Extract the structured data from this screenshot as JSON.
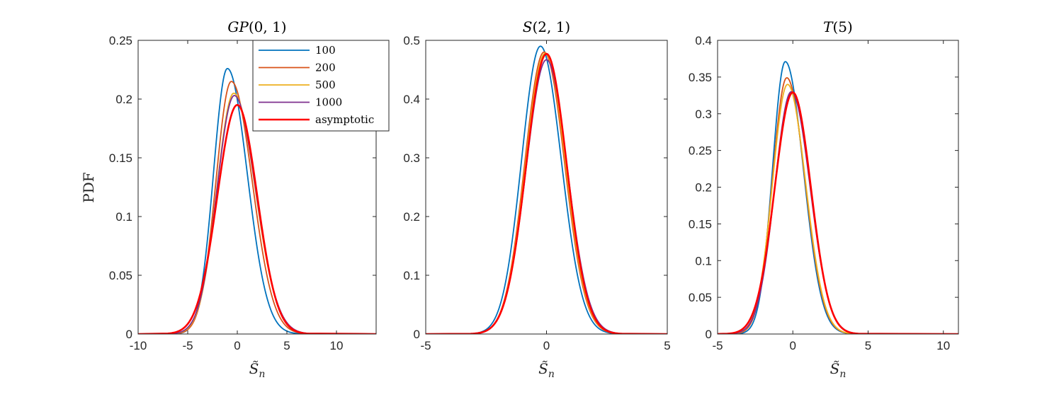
{
  "figure": {
    "ylabel": "PDF"
  },
  "chart_data": [
    {
      "type": "line",
      "title": "GP(0,1)",
      "xlabel": "S̃n",
      "ylabel": "PDF",
      "xlim": [
        -10,
        14
      ],
      "ylim": [
        0,
        0.25
      ],
      "xticks": [
        "-10",
        "-5",
        "0",
        "5",
        "10"
      ],
      "yticks": [
        "0",
        "0.05",
        "0.1",
        "0.15",
        "0.2",
        "0.25"
      ],
      "legend": {
        "location": "top-right",
        "entries": [
          "100",
          "200",
          "500",
          "1000",
          "asymptotic"
        ]
      },
      "series": [
        {
          "name": "100",
          "color": "#0072BD",
          "mean": -1.0,
          "peak": 0.226,
          "sdl": 1.4,
          "sdr": 2.0
        },
        {
          "name": "200",
          "color": "#D95319",
          "mean": -0.6,
          "peak": 0.215,
          "sdl": 1.55,
          "sdr": 2.1
        },
        {
          "name": "500",
          "color": "#EDB120",
          "mean": -0.35,
          "peak": 0.205,
          "sdl": 1.7,
          "sdr": 2.15
        },
        {
          "name": "1000",
          "color": "#7E2F8E",
          "mean": -0.3,
          "peak": 0.203,
          "sdl": 1.75,
          "sdr": 2.15
        },
        {
          "name": "asymptotic",
          "color": "#FF0000",
          "mean": 0.0,
          "peak": 0.195,
          "sdl": 2.0,
          "sdr": 2.0
        }
      ]
    },
    {
      "type": "line",
      "title": "S(2,1)",
      "xlabel": "S̃n",
      "ylabel": "",
      "xlim": [
        -5,
        5
      ],
      "ylim": [
        0,
        0.5
      ],
      "xticks": [
        "-5",
        "0",
        "5"
      ],
      "yticks": [
        "0",
        "0.1",
        "0.2",
        "0.3",
        "0.4",
        "0.5"
      ],
      "series": [
        {
          "name": "100",
          "color": "#0072BD",
          "mean": -0.25,
          "peak": 0.49,
          "sdl": 0.78,
          "sdr": 0.86
        },
        {
          "name": "200",
          "color": "#D95319",
          "mean": -0.1,
          "peak": 0.48,
          "sdl": 0.8,
          "sdr": 0.85
        },
        {
          "name": "500",
          "color": "#EDB120",
          "mean": -0.05,
          "peak": 0.478,
          "sdl": 0.82,
          "sdr": 0.84
        },
        {
          "name": "1000",
          "color": "#7E2F8E",
          "mean": 0.0,
          "peak": 0.467,
          "sdl": 0.84,
          "sdr": 0.86
        },
        {
          "name": "asymptotic",
          "color": "#FF0000",
          "mean": 0.0,
          "peak": 0.477,
          "sdl": 0.836,
          "sdr": 0.836
        }
      ]
    },
    {
      "type": "line",
      "title": "T(5)",
      "xlabel": "S̃n",
      "ylabel": "",
      "xlim": [
        -5,
        11
      ],
      "ylim": [
        0,
        0.4
      ],
      "xticks": [
        "-5",
        "0",
        "5",
        "10"
      ],
      "yticks": [
        "0",
        "0.05",
        "0.1",
        "0.15",
        "0.2",
        "0.25",
        "0.3",
        "0.35",
        "0.4"
      ],
      "series": [
        {
          "name": "100",
          "color": "#0072BD",
          "mean": -0.5,
          "peak": 0.371,
          "sdl": 0.85,
          "sdr": 1.2
        },
        {
          "name": "200",
          "color": "#D95319",
          "mean": -0.4,
          "peak": 0.349,
          "sdl": 0.95,
          "sdr": 1.2
        },
        {
          "name": "500",
          "color": "#EDB120",
          "mean": -0.35,
          "peak": 0.34,
          "sdl": 1.0,
          "sdr": 1.2
        },
        {
          "name": "1000",
          "color": "#7E2F8E",
          "mean": -0.1,
          "peak": 0.33,
          "sdl": 1.1,
          "sdr": 1.25
        },
        {
          "name": "asymptotic",
          "color": "#FF0000",
          "mean": 0.0,
          "peak": 0.329,
          "sdl": 1.2,
          "sdr": 1.2
        }
      ]
    }
  ]
}
